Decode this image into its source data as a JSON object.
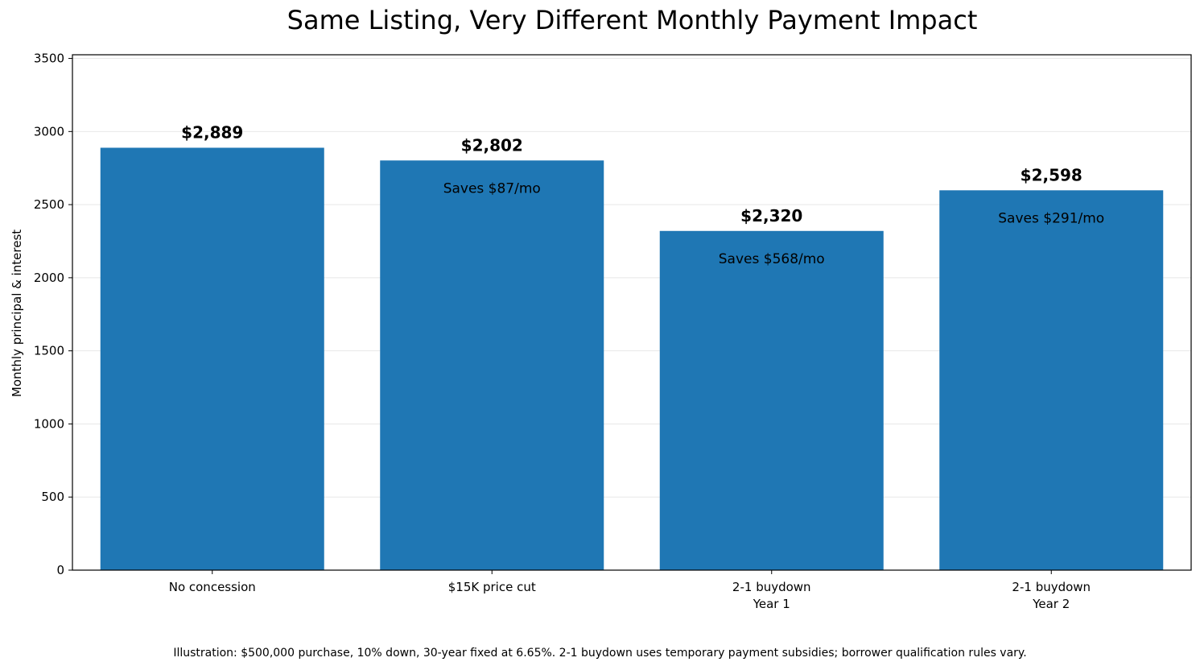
{
  "chart_data": {
    "type": "bar",
    "title": "Same Listing, Very Different Monthly Payment Impact",
    "ylabel": "Monthly principal & interest",
    "xlabel": "",
    "categories": [
      [
        "No concession"
      ],
      [
        "$15K price cut"
      ],
      [
        "2-1 buydown",
        "Year 1"
      ],
      [
        "2-1 buydown",
        "Year 2"
      ]
    ],
    "values": [
      2889,
      2802,
      2320,
      2598
    ],
    "value_labels": [
      "$2,889",
      "$2,802",
      "$2,320",
      "$2,598"
    ],
    "savings_labels": [
      "",
      "Saves $87/mo",
      "Saves $568/mo",
      "Saves $291/mo"
    ],
    "ylim": [
      0,
      3525
    ],
    "yticks": [
      0,
      500,
      1000,
      1500,
      2000,
      2500,
      3000,
      3500
    ],
    "grid": "horizontal",
    "bar_color": "#1f77b4"
  },
  "footnote": "Illustration: $500,000 purchase, 10% down, 30-year fixed at 6.65%. 2-1 buydown uses temporary payment subsidies; borrower qualification rules vary."
}
